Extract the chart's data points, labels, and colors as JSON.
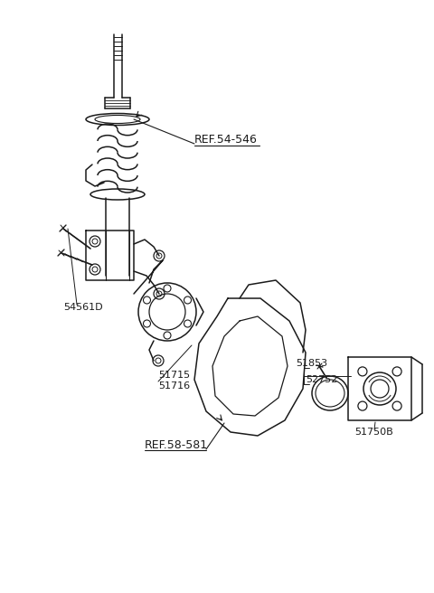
{
  "bg_color": "#ffffff",
  "line_color": "#1a1a1a",
  "labels": {
    "ref54546": "REF.54-546",
    "ref58581": "REF.58-581",
    "part54561D": "54561D",
    "part51715": "51715",
    "part51716": "51716",
    "part51853": "51853",
    "part52752": "52752",
    "part51750B": "51750B"
  },
  "font_size": 8.0,
  "line_width": 1.1
}
